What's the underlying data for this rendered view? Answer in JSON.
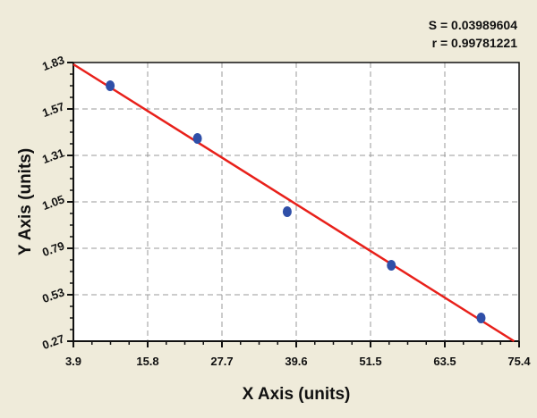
{
  "stats": {
    "s": "S = 0.03989604",
    "r": "r = 0.99781221"
  },
  "chart_data": {
    "type": "scatter",
    "title": "",
    "xlabel": "X Axis (units)",
    "ylabel": "Y Axis (units)",
    "xlim": [
      3.9,
      75.4
    ],
    "ylim": [
      0.27,
      1.83
    ],
    "xticks": [
      "3.9",
      "15.8",
      "27.7",
      "39.6",
      "51.5",
      "63.5",
      "75.4"
    ],
    "yticks": [
      "0.27",
      "0.53",
      "0.79",
      "1.05",
      "1.31",
      "1.57",
      "1.83"
    ],
    "grid": true,
    "points": {
      "x": [
        9.8,
        23.8,
        38.2,
        54.9,
        69.3
      ],
      "y": [
        1.7,
        1.405,
        0.995,
        0.695,
        0.4
      ]
    },
    "fit_line": {
      "x": [
        3.9,
        74.6
      ],
      "y": [
        1.82,
        0.27
      ]
    },
    "colors": {
      "points": "#2f4fa8",
      "fit_line": "#e8201a",
      "background": "#efebda"
    }
  }
}
